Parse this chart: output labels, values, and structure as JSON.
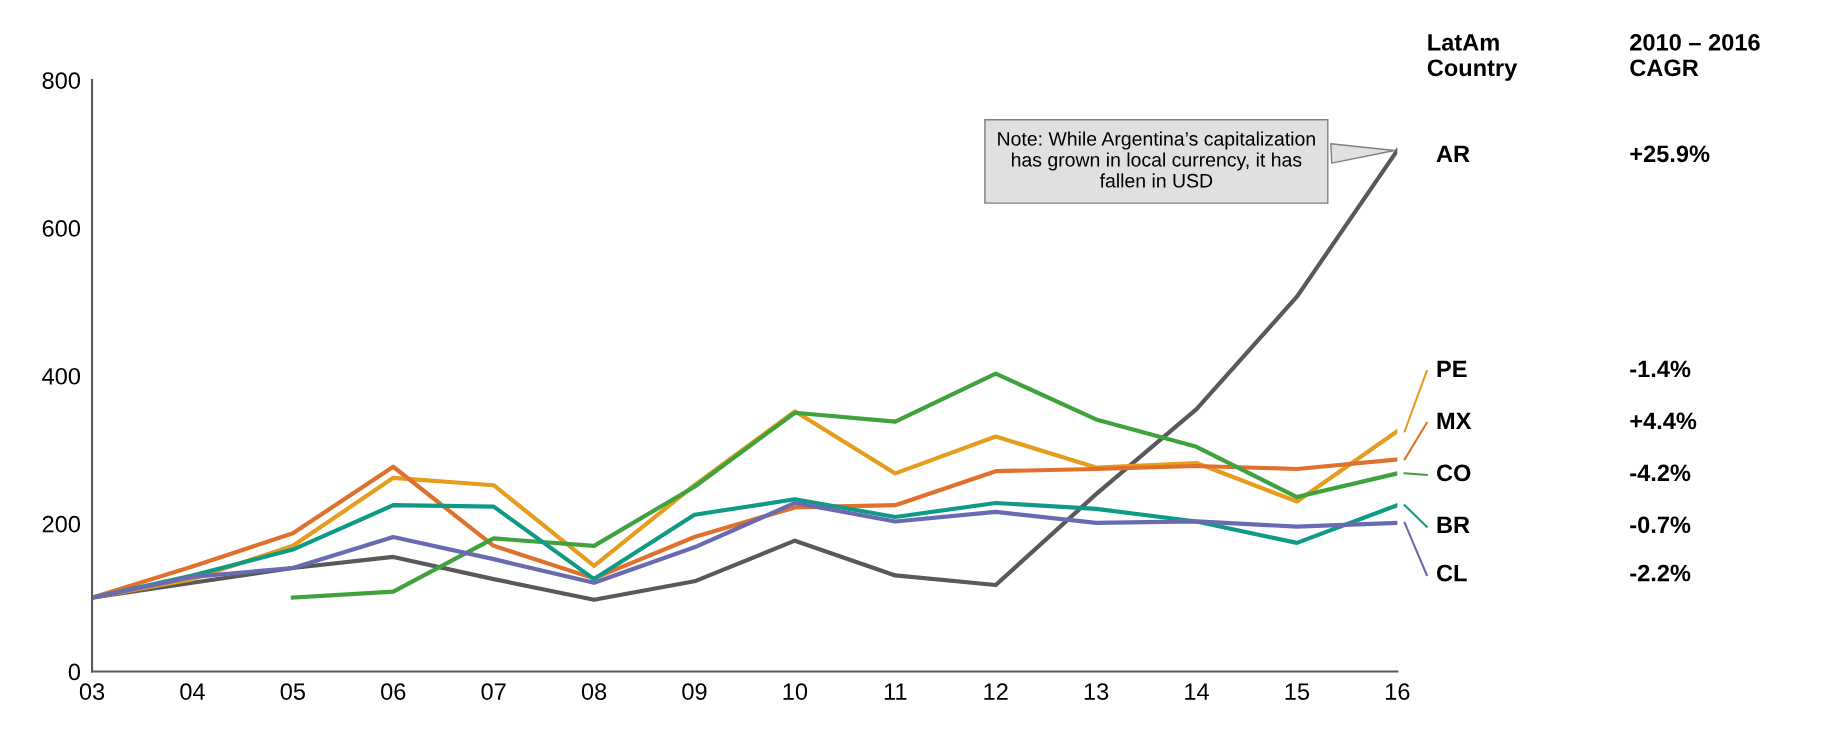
{
  "chart_data": {
    "type": "line",
    "x": [
      2003,
      2004,
      2005,
      2006,
      2007,
      2008,
      2009,
      2010,
      2011,
      2012,
      2013,
      2014,
      2015,
      2016
    ],
    "series": [
      {
        "name": "AR",
        "color": "#595959",
        "values": [
          100,
          120,
          140,
          155,
          125,
          97,
          122,
          177,
          130,
          117,
          240,
          355,
          507,
          705
        ]
      },
      {
        "name": "PE",
        "color": "#e69c1c",
        "values": [
          100,
          125,
          170,
          262,
          252,
          143,
          252,
          352,
          268,
          318,
          276,
          282,
          230,
          325
        ]
      },
      {
        "name": "MX",
        "color": "#e0702c",
        "values": [
          100,
          142,
          187,
          277,
          170,
          126,
          182,
          222,
          225,
          271,
          274,
          278,
          274,
          287
        ]
      },
      {
        "name": "CO",
        "color": "#3fa23c",
        "values": [
          null,
          null,
          100,
          108,
          180,
          170,
          250,
          350,
          338,
          403,
          341,
          304,
          236,
          268
        ]
      },
      {
        "name": "BR",
        "color": "#0f9a85",
        "values": [
          100,
          130,
          165,
          225,
          223,
          125,
          212,
          233,
          209,
          228,
          220,
          203,
          174,
          225
        ]
      },
      {
        "name": "CL",
        "color": "#6a6ab2",
        "values": [
          100,
          128,
          140,
          182,
          152,
          120,
          168,
          228,
          203,
          216,
          201,
          203,
          196,
          201
        ]
      }
    ],
    "xlim": [
      2003,
      2016
    ],
    "xticks": [
      {
        "value": 2003,
        "label": "03"
      },
      {
        "value": 2004,
        "label": "04"
      },
      {
        "value": 2005,
        "label": "05"
      },
      {
        "value": 2006,
        "label": "06"
      },
      {
        "value": 2007,
        "label": "07"
      },
      {
        "value": 2008,
        "label": "08"
      },
      {
        "value": 2009,
        "label": "09"
      },
      {
        "value": 2010,
        "label": "10"
      },
      {
        "value": 2011,
        "label": "11"
      },
      {
        "value": 2012,
        "label": "12"
      },
      {
        "value": 2013,
        "label": "13"
      },
      {
        "value": 2014,
        "label": "14"
      },
      {
        "value": 2015,
        "label": "15"
      },
      {
        "value": 2016,
        "label": "16"
      }
    ],
    "ylim": [
      0,
      800
    ],
    "yticks": [
      0,
      200,
      400,
      600,
      800
    ],
    "grid": false,
    "legend": "right",
    "marker": "none",
    "line_style": "solid",
    "annotations": [
      {
        "text": "Note: While Argentina’s capitalization has grown in local currency, it has fallen in USD",
        "x": 2016,
        "y": 705
      },
      "LatAm\nCountry",
      "2010 – 2016\nCAGR",
      "+25.9%",
      "-1.4%",
      "+4.4%",
      "-4.2%",
      "-0.7%",
      "-2.2%"
    ]
  }
}
